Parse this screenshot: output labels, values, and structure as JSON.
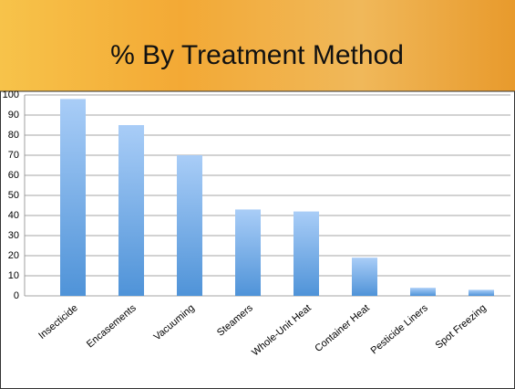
{
  "chart_data": {
    "type": "bar",
    "title": "% By Treatment Method",
    "categories": [
      "Insecticide",
      "Encasements",
      "Vacuuming",
      "Steamers",
      "Whole-Unit Heat",
      "Container Heat",
      "Pesticide Liners",
      "Spot Freezing"
    ],
    "values": [
      98,
      85,
      70,
      43,
      42,
      19,
      4,
      3
    ],
    "color": "#5b9bd5",
    "ylim": [
      0,
      100
    ],
    "yticks": [
      0,
      10,
      20,
      30,
      40,
      50,
      60,
      70,
      80,
      90,
      100
    ],
    "grid": true
  }
}
